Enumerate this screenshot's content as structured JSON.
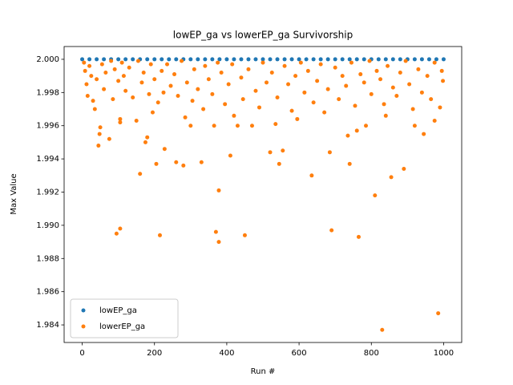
{
  "chart_data": {
    "type": "scatter",
    "title": "lowEP_ga vs lowerEP_ga Survivorship",
    "x_label": "Run #",
    "y_label": "Max Value",
    "xlim": [
      -50,
      1050
    ],
    "ylim": [
      1.98294,
      2.00077
    ],
    "xticks": [
      0,
      200,
      400,
      600,
      800,
      1000
    ],
    "yticks": [
      {
        "value": 1.984,
        "label": "1.984"
      },
      {
        "value": 1.986,
        "label": "1.986"
      },
      {
        "value": 1.988,
        "label": "1.988"
      },
      {
        "value": 1.99,
        "label": "1.990"
      },
      {
        "value": 1.992,
        "label": "1.992"
      },
      {
        "value": 1.994,
        "label": "1.994"
      },
      {
        "value": 1.996,
        "label": "1.996"
      },
      {
        "value": 1.998,
        "label": "1.998"
      },
      {
        "value": 2,
        "label": "2.000"
      }
    ],
    "legend": "lower left",
    "series": [
      {
        "name": "lowEP_ga",
        "color": "#1f77b4",
        "x": [
          0,
          20,
          40,
          60,
          80,
          100,
          120,
          140,
          160,
          180,
          200,
          220,
          240,
          260,
          280,
          300,
          320,
          340,
          360,
          380,
          400,
          420,
          440,
          460,
          480,
          500,
          520,
          540,
          560,
          580,
          600,
          620,
          640,
          660,
          680,
          700,
          720,
          740,
          760,
          780,
          800,
          820,
          840,
          860,
          880,
          900,
          920,
          940,
          960,
          980,
          1000
        ],
        "values": [
          2,
          2,
          2,
          2,
          2,
          2,
          2,
          2,
          2,
          2,
          2,
          2,
          2,
          2,
          2,
          2,
          2,
          2,
          2,
          2,
          2,
          2,
          2,
          2,
          2,
          2,
          2,
          2,
          2,
          2,
          2,
          2,
          2,
          2,
          2,
          2,
          2,
          2,
          2,
          2,
          2,
          2,
          2,
          2,
          2,
          2,
          2,
          2,
          2,
          2,
          2
        ]
      },
      {
        "name": "lowerEP_ga",
        "color": "#ff7f0e",
        "x": [
          95,
          105,
          215,
          370,
          378,
          378,
          450,
          690,
          765,
          810,
          830,
          985,
          160,
          205,
          635,
          855,
          890,
          545,
          740,
          45,
          75,
          228,
          260,
          280,
          330,
          410,
          520,
          555,
          685,
          945,
          50,
          48,
          105,
          105,
          180,
          175,
          300,
          365,
          430,
          470,
          535,
          595,
          735,
          760,
          785,
          840,
          920,
          975,
          5,
          8,
          12,
          15,
          20,
          25,
          30,
          35,
          40,
          55,
          60,
          65,
          80,
          85,
          90,
          100,
          110,
          115,
          120,
          130,
          140,
          150,
          155,
          165,
          170,
          185,
          190,
          195,
          200,
          210,
          220,
          225,
          235,
          245,
          255,
          265,
          275,
          285,
          290,
          305,
          310,
          320,
          335,
          340,
          350,
          360,
          375,
          385,
          395,
          405,
          415,
          420,
          440,
          445,
          460,
          480,
          490,
          500,
          510,
          525,
          540,
          560,
          570,
          580,
          590,
          605,
          615,
          625,
          640,
          650,
          660,
          670,
          680,
          700,
          710,
          720,
          730,
          745,
          755,
          770,
          780,
          795,
          800,
          815,
          825,
          835,
          845,
          860,
          870,
          880,
          895,
          905,
          915,
          930,
          940,
          955,
          965,
          975,
          990,
          995,
          998
        ],
        "values": [
          1.9895,
          1.9898,
          1.9894,
          1.9896,
          1.989,
          1.9921,
          1.9894,
          1.9897,
          1.9893,
          1.9918,
          1.9837,
          1.9847,
          1.9931,
          1.9937,
          1.993,
          1.9929,
          1.9934,
          1.9937,
          1.9937,
          1.9948,
          1.9952,
          1.9946,
          1.9938,
          1.9936,
          1.9938,
          1.9942,
          1.9944,
          1.9945,
          1.9944,
          1.9955,
          1.9959,
          1.9955,
          1.9962,
          1.9964,
          1.9953,
          1.995,
          1.996,
          1.996,
          1.996,
          1.996,
          1.9961,
          1.9964,
          1.9954,
          1.9957,
          1.996,
          1.9966,
          1.996,
          1.9963,
          1.9998,
          1.9993,
          1.9985,
          1.9978,
          1.9996,
          1.999,
          1.9975,
          1.997,
          1.9988,
          1.9997,
          1.9982,
          1.9992,
          1.9999,
          1.9976,
          1.9994,
          1.9987,
          1.9998,
          1.999,
          1.9981,
          1.9995,
          1.9977,
          1.9963,
          1.9999,
          1.9986,
          1.9992,
          1.9979,
          1.9997,
          1.9968,
          1.9988,
          1.9974,
          1.9993,
          1.998,
          1.9997,
          1.9984,
          1.9991,
          1.9978,
          1.9999,
          1.9965,
          1.9986,
          1.9975,
          1.9994,
          1.9982,
          1.997,
          1.9996,
          1.9988,
          1.9979,
          1.9998,
          1.9992,
          1.9973,
          1.9985,
          1.9997,
          1.9966,
          1.9989,
          1.9976,
          1.9994,
          1.9981,
          1.9971,
          1.9998,
          1.9986,
          1.9992,
          1.9977,
          1.9996,
          1.9985,
          1.9969,
          1.999,
          1.9998,
          1.998,
          1.9993,
          1.9974,
          1.9987,
          1.9997,
          1.9968,
          1.9982,
          1.9995,
          1.9976,
          1.999,
          1.9984,
          1.9998,
          1.9972,
          1.9991,
          1.9986,
          1.9999,
          1.9979,
          1.9993,
          1.9988,
          1.9973,
          1.9996,
          1.9983,
          1.9978,
          1.9992,
          1.9999,
          1.9985,
          1.997,
          1.9994,
          1.998,
          1.999,
          1.9976,
          1.9998,
          1.9971,
          1.9993,
          1.9987
        ]
      }
    ]
  }
}
